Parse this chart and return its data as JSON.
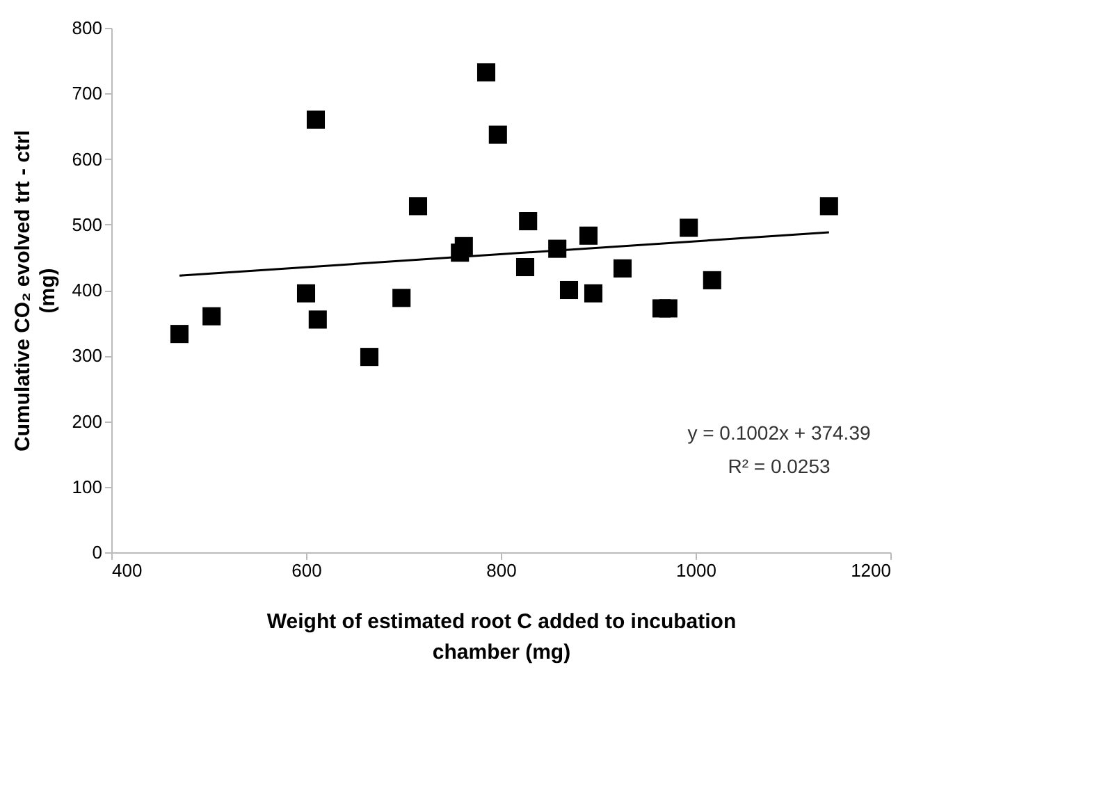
{
  "chart_data": {
    "type": "scatter",
    "xlabel": "Weight of estimated root C added to incubation chamber (mg)",
    "ylabel": "Cumulative CO₂ evolved trt - ctrl (mg)",
    "xlim": [
      400,
      1200
    ],
    "xticks": [
      400,
      600,
      800,
      1000,
      1200
    ],
    "ylim": [
      0,
      800
    ],
    "yticks": [
      0,
      100,
      200,
      300,
      400,
      500,
      600,
      700,
      800
    ],
    "grid": false,
    "series": [
      {
        "color": "#000000",
        "marker": "square",
        "x": [
          470,
          503,
          600,
          610,
          612,
          665,
          698,
          715,
          758,
          762,
          785,
          797,
          825,
          828,
          858,
          870,
          890,
          895,
          925,
          965,
          972,
          993,
          1017,
          1137
        ],
        "values": [
          333,
          360,
          395,
          660,
          355,
          298,
          388,
          528,
          457,
          467,
          732,
          637,
          435,
          505,
          463,
          400,
          483,
          395,
          433,
          372,
          372,
          495,
          415,
          528
        ]
      },
      {
        "type": "line",
        "color": "#000000",
        "marker": "none",
        "line_style": "solid",
        "x": [
          470,
          1137
        ],
        "values": [
          422,
          488
        ]
      }
    ],
    "annotations": [
      {
        "text": "y = 0.1002x + 374.39"
      },
      {
        "text": "R² = 0.0253"
      }
    ]
  }
}
